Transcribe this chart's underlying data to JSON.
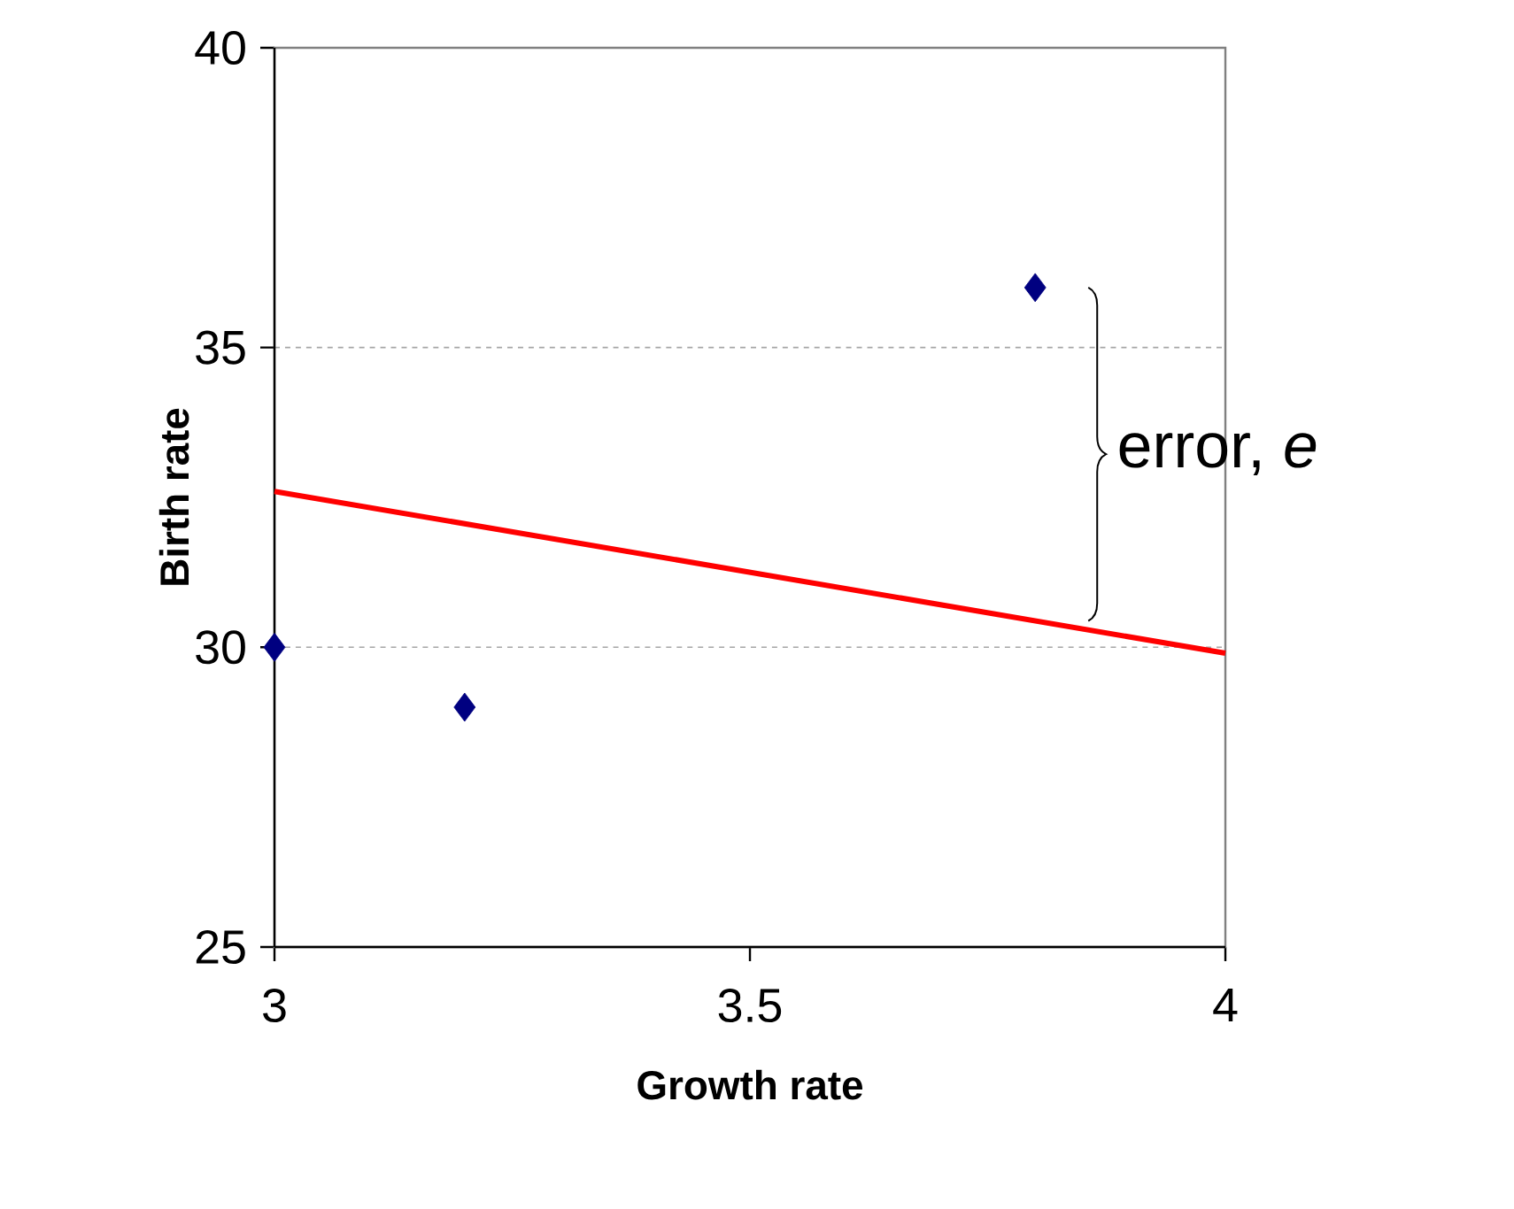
{
  "chart_data": {
    "type": "scatter",
    "xlabel": "Growth rate",
    "ylabel": "Birth rate",
    "xlim": [
      3,
      4
    ],
    "xticks": [
      3,
      3.5,
      4
    ],
    "ylim": [
      25,
      40
    ],
    "yticks": [
      25,
      30,
      35,
      40
    ],
    "grid": "y",
    "marker": "diamond",
    "series": [
      {
        "color": "#000080",
        "x": [
          3,
          3.2,
          3.8
        ],
        "values": [
          30,
          29,
          36
        ]
      },
      {
        "type": "line",
        "color": "#ff0000",
        "x": [
          3,
          4
        ],
        "values": [
          32.6,
          29.9
        ],
        "line_style": "solid",
        "marker": "none"
      }
    ],
    "annotations": [
      "error, *e*"
    ]
  }
}
